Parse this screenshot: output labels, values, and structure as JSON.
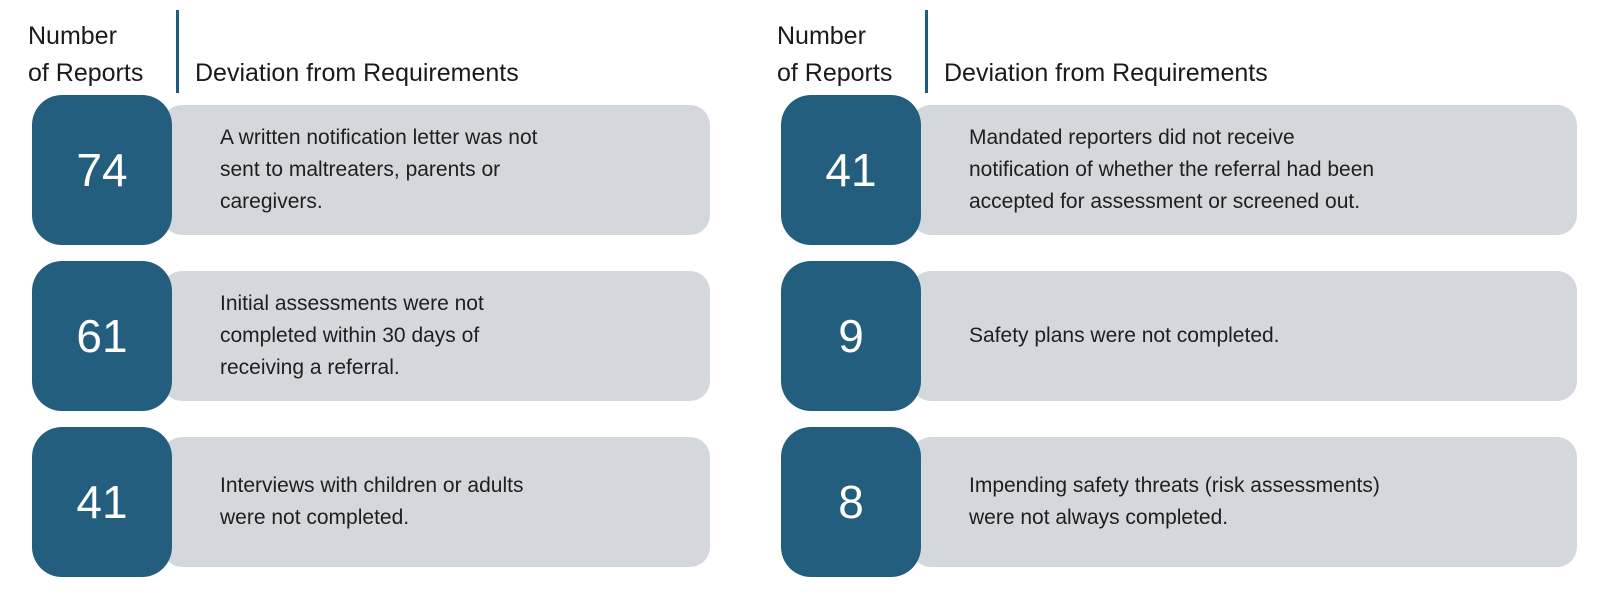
{
  "colors": {
    "background": "#FFFFFF",
    "tile": "#235E7E",
    "bar": "#D4D8DD",
    "divider": "#1E5B7D",
    "number_text": "#FFFFFF",
    "header_text": "#1A1A1A",
    "body_text": "#1E1E1E"
  },
  "columns": [
    {
      "header": {
        "reports_label_line1": "Number",
        "reports_label_line2": "of Reports",
        "deviation_label": "Deviation from Requirements"
      },
      "rows": [
        {
          "count": "74",
          "text": "A written notification letter was not sent to maltreaters, parents or caregivers."
        },
        {
          "count": "61",
          "text": "Initial assessments were not completed within 30 days of receiving a referral."
        },
        {
          "count": "41",
          "text": "Interviews with children or adults were not completed."
        }
      ]
    },
    {
      "header": {
        "reports_label_line1": "Number",
        "reports_label_line2": "of Reports",
        "deviation_label": "Deviation from Requirements"
      },
      "rows": [
        {
          "count": "41",
          "text": "Mandated reporters did not receive notification of whether the referral had been accepted for assessment or screened out."
        },
        {
          "count": "9",
          "text": "Safety plans were not completed."
        },
        {
          "count": "8",
          "text": "Impending safety threats (risk assessments) were not always completed."
        }
      ]
    }
  ]
}
